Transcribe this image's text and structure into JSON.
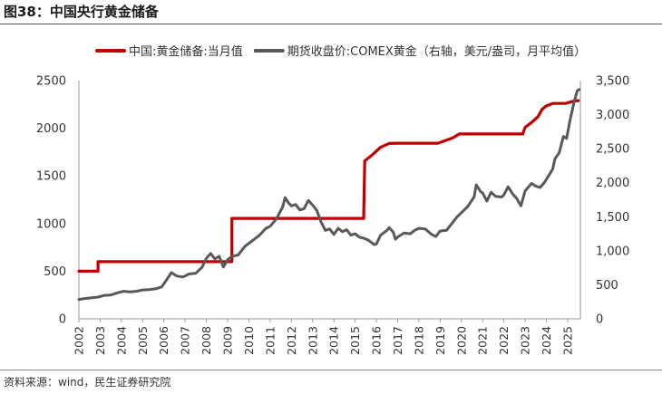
{
  "figure_title": "图38：中国央行黄金储备",
  "source": "资料来源：wind，民生证券研究院",
  "chart_data": {
    "type": "line",
    "title": "",
    "legend_position": "top",
    "grid": false,
    "x_ticks": [
      "2002",
      "2003",
      "2004",
      "2005",
      "2006",
      "2007",
      "2008",
      "2009",
      "2010",
      "2011",
      "2012",
      "2013",
      "2014",
      "2015",
      "2016",
      "2017",
      "2018",
      "2019",
      "2020",
      "2021",
      "2022",
      "2023",
      "2024",
      "2025"
    ],
    "xlim": [
      2002,
      2025.6
    ],
    "y_left": {
      "min": 0,
      "max": 2500,
      "ticks": [
        "0",
        "500",
        "1000",
        "1500",
        "2000",
        "2500"
      ]
    },
    "y_right": {
      "min": 0,
      "max": 3500,
      "ticks": [
        "0",
        "500",
        "1,000",
        "1,500",
        "2,000",
        "2,500",
        "3,000",
        "3,500"
      ]
    },
    "series": [
      {
        "name": "中国:黄金储备:当月值",
        "axis": "left",
        "color": "#c00000",
        "step": true,
        "points": [
          [
            2002.0,
            500
          ],
          [
            2002.9,
            500
          ],
          [
            2002.9,
            600
          ],
          [
            2009.2,
            600
          ],
          [
            2009.2,
            1054
          ],
          [
            2015.4,
            1054
          ],
          [
            2015.45,
            1658
          ],
          [
            2015.8,
            1720
          ],
          [
            2016.2,
            1800
          ],
          [
            2016.6,
            1840
          ],
          [
            2017.0,
            1843
          ],
          [
            2018.9,
            1843
          ],
          [
            2019.6,
            1900
          ],
          [
            2019.9,
            1940
          ],
          [
            2022.9,
            1940
          ],
          [
            2022.9,
            1950
          ],
          [
            2023.0,
            2010
          ],
          [
            2023.3,
            2060
          ],
          [
            2023.6,
            2120
          ],
          [
            2023.8,
            2200
          ],
          [
            2024.0,
            2235
          ],
          [
            2024.3,
            2260
          ],
          [
            2024.9,
            2260
          ],
          [
            2025.3,
            2285
          ],
          [
            2025.5,
            2290
          ]
        ]
      },
      {
        "name": "期货收盘价:COMEX黄金（右轴，美元/盎司，月平均值）",
        "axis": "right",
        "color": "#595959",
        "step": false,
        "points": [
          [
            2002.0,
            285
          ],
          [
            2002.3,
            300
          ],
          [
            2002.6,
            310
          ],
          [
            2002.9,
            320
          ],
          [
            2003.2,
            345
          ],
          [
            2003.5,
            350
          ],
          [
            2003.8,
            380
          ],
          [
            2004.1,
            405
          ],
          [
            2004.4,
            395
          ],
          [
            2004.7,
            405
          ],
          [
            2005.0,
            425
          ],
          [
            2005.3,
            430
          ],
          [
            2005.6,
            440
          ],
          [
            2005.9,
            470
          ],
          [
            2006.1,
            560
          ],
          [
            2006.35,
            680
          ],
          [
            2006.6,
            630
          ],
          [
            2006.9,
            615
          ],
          [
            2007.2,
            660
          ],
          [
            2007.5,
            670
          ],
          [
            2007.8,
            760
          ],
          [
            2008.0,
            890
          ],
          [
            2008.2,
            960
          ],
          [
            2008.4,
            880
          ],
          [
            2008.6,
            920
          ],
          [
            2008.8,
            760
          ],
          [
            2009.0,
            870
          ],
          [
            2009.2,
            915
          ],
          [
            2009.5,
            940
          ],
          [
            2009.8,
            1060
          ],
          [
            2010.0,
            1110
          ],
          [
            2010.3,
            1180
          ],
          [
            2010.5,
            1230
          ],
          [
            2010.8,
            1330
          ],
          [
            2011.0,
            1360
          ],
          [
            2011.3,
            1470
          ],
          [
            2011.6,
            1650
          ],
          [
            2011.7,
            1780
          ],
          [
            2011.85,
            1710
          ],
          [
            2012.0,
            1660
          ],
          [
            2012.2,
            1680
          ],
          [
            2012.4,
            1600
          ],
          [
            2012.6,
            1620
          ],
          [
            2012.8,
            1740
          ],
          [
            2013.0,
            1670
          ],
          [
            2013.2,
            1590
          ],
          [
            2013.4,
            1420
          ],
          [
            2013.6,
            1300
          ],
          [
            2013.8,
            1320
          ],
          [
            2014.0,
            1240
          ],
          [
            2014.2,
            1330
          ],
          [
            2014.4,
            1280
          ],
          [
            2014.6,
            1310
          ],
          [
            2014.8,
            1230
          ],
          [
            2015.0,
            1250
          ],
          [
            2015.2,
            1200
          ],
          [
            2015.4,
            1185
          ],
          [
            2015.6,
            1160
          ],
          [
            2015.9,
            1090
          ],
          [
            2016.0,
            1100
          ],
          [
            2016.2,
            1230
          ],
          [
            2016.5,
            1300
          ],
          [
            2016.6,
            1340
          ],
          [
            2016.8,
            1270
          ],
          [
            2016.9,
            1170
          ],
          [
            2017.0,
            1200
          ],
          [
            2017.3,
            1260
          ],
          [
            2017.6,
            1250
          ],
          [
            2017.8,
            1300
          ],
          [
            2018.0,
            1330
          ],
          [
            2018.3,
            1320
          ],
          [
            2018.6,
            1240
          ],
          [
            2018.8,
            1210
          ],
          [
            2019.0,
            1290
          ],
          [
            2019.3,
            1300
          ],
          [
            2019.6,
            1420
          ],
          [
            2019.8,
            1500
          ],
          [
            2020.0,
            1560
          ],
          [
            2020.3,
            1650
          ],
          [
            2020.6,
            1790
          ],
          [
            2020.7,
            1970
          ],
          [
            2020.9,
            1870
          ],
          [
            2021.0,
            1850
          ],
          [
            2021.2,
            1730
          ],
          [
            2021.4,
            1860
          ],
          [
            2021.6,
            1800
          ],
          [
            2021.9,
            1790
          ],
          [
            2022.0,
            1820
          ],
          [
            2022.2,
            1940
          ],
          [
            2022.4,
            1840
          ],
          [
            2022.6,
            1770
          ],
          [
            2022.8,
            1660
          ],
          [
            2023.0,
            1880
          ],
          [
            2023.3,
            1990
          ],
          [
            2023.5,
            1950
          ],
          [
            2023.7,
            1930
          ],
          [
            2023.9,
            2000
          ],
          [
            2024.0,
            2050
          ],
          [
            2024.3,
            2200
          ],
          [
            2024.4,
            2350
          ],
          [
            2024.6,
            2440
          ],
          [
            2024.8,
            2680
          ],
          [
            2024.95,
            2650
          ],
          [
            2025.1,
            2900
          ],
          [
            2025.3,
            3180
          ],
          [
            2025.45,
            3350
          ],
          [
            2025.55,
            3370
          ]
        ]
      }
    ]
  }
}
